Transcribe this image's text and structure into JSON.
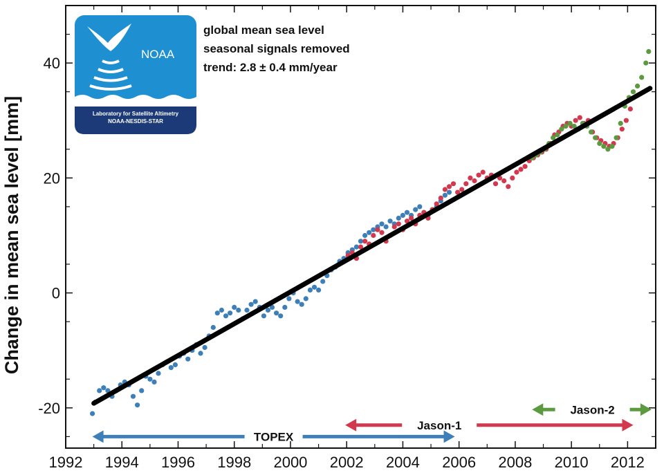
{
  "chart_data": {
    "type": "scatter",
    "title": "",
    "xlabel": "",
    "ylabel": "Change in mean sea level [mm]",
    "xlim": [
      1992,
      2013
    ],
    "ylim": [
      -27,
      50
    ],
    "x_ticks": [
      1992,
      1994,
      1996,
      1998,
      2000,
      2002,
      2004,
      2006,
      2008,
      2010,
      2012
    ],
    "y_ticks": [
      -20,
      0,
      20,
      40
    ],
    "grid": false,
    "annotations": [
      "global mean sea level",
      "seasonal signals removed",
      "trend:  2.8 ± 0.4 mm/year"
    ],
    "trend": {
      "x": [
        1993.0,
        2012.8
      ],
      "y": [
        -19.2,
        35.6
      ],
      "color": "#000000"
    },
    "series": [
      {
        "name": "TOPEX",
        "color": "#3f7fb8",
        "x": [
          1992.95,
          1993.05,
          1993.2,
          1993.35,
          1993.5,
          1993.65,
          1993.8,
          1993.95,
          1994.1,
          1994.25,
          1994.4,
          1994.55,
          1994.7,
          1994.85,
          1995.0,
          1995.15,
          1995.3,
          1995.45,
          1995.6,
          1995.75,
          1995.9,
          1996.05,
          1996.2,
          1996.35,
          1996.5,
          1996.65,
          1996.8,
          1996.95,
          1997.1,
          1997.25,
          1997.4,
          1997.55,
          1997.7,
          1997.85,
          1998.0,
          1998.15,
          1998.3,
          1998.45,
          1998.6,
          1998.75,
          1998.9,
          1999.05,
          1999.2,
          1999.35,
          1999.5,
          1999.65,
          1999.8,
          1999.95,
          2000.1,
          2000.25,
          2000.4,
          2000.55,
          2000.7,
          2000.85,
          2001.0,
          2001.15,
          2001.3,
          2001.45,
          2001.6,
          2001.75,
          2001.9,
          2002.05,
          2002.2,
          2002.35,
          2002.5,
          2002.65,
          2002.8,
          2002.95,
          2003.1,
          2003.25,
          2003.4,
          2003.55,
          2003.7,
          2003.85,
          2004.0,
          2004.15,
          2004.3,
          2004.45,
          2004.6,
          2004.75,
          2004.9,
          2005.05,
          2005.2,
          2005.35,
          2005.5,
          2005.65
        ],
        "y": [
          -21,
          -19,
          -17,
          -16.5,
          -17,
          -18,
          -17,
          -16,
          -15.5,
          -16,
          -18,
          -19.5,
          -17,
          -14.5,
          -15,
          -15.5,
          -14,
          -12.5,
          -12,
          -13,
          -12.5,
          -11,
          -10.5,
          -11.5,
          -10,
          -9,
          -10.5,
          -9.5,
          -7.5,
          -6,
          -3.5,
          -3,
          -4,
          -3.5,
          -2.5,
          -3,
          -4.5,
          -3,
          -2,
          -1.5,
          -2.5,
          -4,
          -3,
          -2.5,
          -3.5,
          -4,
          -2.5,
          -1,
          0,
          -1.5,
          -2,
          -1,
          0.5,
          1,
          0.5,
          2,
          3,
          4,
          4.5,
          5.5,
          6,
          7,
          7.5,
          8,
          9,
          10,
          10.5,
          11,
          11.5,
          12,
          11.5,
          12.5,
          12,
          13,
          13.5,
          14,
          13.5,
          14.5,
          15,
          14,
          13.5,
          14.5,
          15,
          16,
          17,
          17.5
        ]
      },
      {
        "name": "Jason-1",
        "color": "#d2394f",
        "x": [
          2002.05,
          2002.2,
          2002.35,
          2002.5,
          2002.65,
          2002.8,
          2002.95,
          2003.1,
          2003.25,
          2003.4,
          2003.55,
          2003.7,
          2003.85,
          2004.0,
          2004.15,
          2004.3,
          2004.45,
          2004.6,
          2004.75,
          2004.9,
          2005.05,
          2005.2,
          2005.35,
          2005.5,
          2005.65,
          2005.8,
          2005.95,
          2006.1,
          2006.25,
          2006.4,
          2006.55,
          2006.7,
          2006.85,
          2007.0,
          2007.15,
          2007.3,
          2007.45,
          2007.6,
          2007.75,
          2007.9,
          2008.05,
          2008.2,
          2008.35,
          2008.5,
          2008.65,
          2008.8,
          2008.95,
          2009.1,
          2009.25,
          2009.4,
          2009.55,
          2009.7,
          2009.85,
          2010.0,
          2010.15,
          2010.3,
          2010.45,
          2010.6,
          2010.75,
          2010.9,
          2011.05,
          2011.2,
          2011.35,
          2011.5,
          2011.65,
          2011.8,
          2011.95,
          2012.1
        ],
        "y": [
          6.5,
          7,
          6,
          8,
          9,
          8.5,
          10,
          11,
          10.5,
          9,
          10,
          11.5,
          12,
          11,
          12.5,
          13,
          12,
          13.5,
          14,
          13,
          14.5,
          15.5,
          16.5,
          18,
          18.5,
          19,
          17.5,
          18,
          19,
          20,
          19.5,
          20.5,
          21,
          20,
          20.5,
          19,
          20,
          19.5,
          18.5,
          20,
          21,
          21.5,
          22,
          23,
          23.5,
          24,
          24.5,
          25,
          26,
          27.5,
          28,
          29,
          29.5,
          29,
          30,
          30.5,
          29.5,
          30,
          28,
          27,
          26.5,
          26,
          25.5,
          26,
          27,
          28.5,
          30,
          32
        ]
      },
      {
        "name": "Jason-2",
        "color": "#5b9a3e",
        "x": [
          2008.6,
          2008.75,
          2008.9,
          2009.05,
          2009.2,
          2009.35,
          2009.5,
          2009.65,
          2009.8,
          2009.95,
          2010.1,
          2010.25,
          2010.4,
          2010.55,
          2010.7,
          2010.85,
          2011.0,
          2011.15,
          2011.3,
          2011.45,
          2011.6,
          2011.75,
          2011.9,
          2012.05,
          2012.2,
          2012.35,
          2012.5,
          2012.65,
          2012.75
        ],
        "y": [
          23.5,
          24,
          24.5,
          25,
          26,
          27,
          27.5,
          28.5,
          29,
          29.5,
          29,
          28.5,
          29.5,
          29,
          28,
          27,
          26,
          25.5,
          25,
          25.5,
          27,
          29.5,
          32.5,
          34,
          35,
          36,
          37.5,
          40,
          42
        ]
      }
    ],
    "mission_labels": [
      {
        "name": "TOPEX",
        "start": 1992.95,
        "end": 2005.85,
        "y": -25,
        "color": "#3f7fb8",
        "label_x": 1999.4
      },
      {
        "name": "Jason-1",
        "start": 2001.95,
        "end": 2012.2,
        "y": -23,
        "color": "#d2394f",
        "label_x": 2005.3
      },
      {
        "name": "Jason-2",
        "start": 2008.6,
        "end": 2012.85,
        "y": -20.3,
        "color": "#5b9a3e",
        "label_x": 2010.75
      }
    ]
  },
  "logo": {
    "name": "NOAA",
    "line1": "Laboratory for Satellite Altimetry",
    "line2": "NOAA-NESDIS-STAR",
    "color_top": "#1e8fd1",
    "color_bottom": "#1c3a78"
  }
}
